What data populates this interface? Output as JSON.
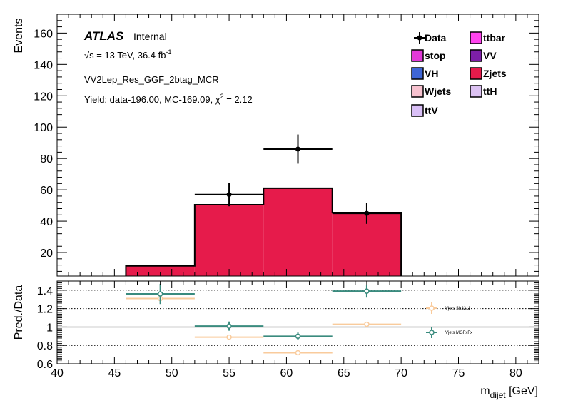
{
  "chart_data": [
    {
      "type": "bar",
      "panel": "main",
      "xlabel_main": "m",
      "xlabel_sub": "dijet",
      "xlabel_unit": " [GeV]",
      "ylabel": "Events",
      "xlim": [
        40,
        82
      ],
      "ylim": [
        5,
        172
      ],
      "xticks": [
        40,
        45,
        50,
        55,
        60,
        65,
        70,
        75,
        80
      ],
      "yticks": [
        20,
        40,
        60,
        80,
        100,
        120,
        140,
        160
      ],
      "atlas": {
        "brand": "ATLAS",
        "status": "Internal"
      },
      "energy": {
        "sqrt": "√s",
        "text": " = 13 TeV, 36.4 fb",
        "sup": "-1"
      },
      "region": "VV2Lep_Res_GGF_2btag_MCR",
      "yield": {
        "text": "Yield: data-196.00, MC-169.09, χ",
        "sup": "2",
        "tail": " = 2.12"
      },
      "legend": [
        {
          "name": "Data",
          "color": "#000000",
          "marker": "point"
        },
        {
          "name": "ttbar",
          "color": "#ff44ee",
          "marker": "box"
        },
        {
          "name": "stop",
          "color": "#e23ad8",
          "marker": "box"
        },
        {
          "name": "VV",
          "color": "#7d1fa8",
          "marker": "box"
        },
        {
          "name": "VH",
          "color": "#3f66d6",
          "marker": "box"
        },
        {
          "name": "Zjets",
          "color": "#e61b4b",
          "marker": "box"
        },
        {
          "name": "Wjets",
          "color": "#f7c2cf",
          "marker": "box"
        },
        {
          "name": "ttH",
          "color": "#dcc2f2",
          "marker": "box"
        },
        {
          "name": "ttV",
          "color": "#d9bff6",
          "marker": "box"
        }
      ],
      "stack": {
        "name": "Zjets",
        "color": "#e61b4b",
        "bins": [
          {
            "lo": 46,
            "hi": 52,
            "value": 11.5
          },
          {
            "lo": 52,
            "hi": 58,
            "value": 50.5
          },
          {
            "lo": 58,
            "hi": 64,
            "value": 61
          },
          {
            "lo": 64,
            "hi": 70,
            "value": 45.5
          }
        ]
      },
      "data_points": [
        {
          "x": 55,
          "xlo": 52,
          "xhi": 58,
          "y": 57,
          "err": 7.5
        },
        {
          "x": 61,
          "xlo": 58,
          "xhi": 64,
          "y": 86,
          "err": 9.3
        },
        {
          "x": 67,
          "xlo": 64,
          "xhi": 70,
          "y": 45,
          "err": 6.7
        }
      ]
    },
    {
      "type": "scatter",
      "panel": "ratio",
      "ylabel": "Pred./Data",
      "xlim": [
        40,
        82
      ],
      "ylim": [
        0.6,
        1.5
      ],
      "xticks": [
        40,
        45,
        50,
        55,
        60,
        65,
        70,
        75,
        80
      ],
      "yticks": [
        0.6,
        0.8,
        1,
        1.2,
        1.4
      ],
      "ytick_labels": [
        "0.6",
        "0.8",
        "1",
        "1.2",
        "1.4"
      ],
      "dotted_lines": [
        0.8,
        1.2,
        1.4
      ],
      "reference_line": 1,
      "series": [
        {
          "name": "Vjets Sh2211",
          "color": "#f9cb9c",
          "points": [
            {
              "x": 49,
              "xlo": 46,
              "xhi": 52,
              "y": 1.31,
              "err": 0.0
            },
            {
              "x": 55,
              "xlo": 52,
              "xhi": 58,
              "y": 0.89,
              "err": 0.0
            },
            {
              "x": 61,
              "xlo": 58,
              "xhi": 64,
              "y": 0.72,
              "err": 0.0
            },
            {
              "x": 67,
              "xlo": 64,
              "xhi": 70,
              "y": 1.03,
              "err": 0.0
            }
          ]
        },
        {
          "name": "Vjets MGFxFx",
          "color": "#3a8b7e",
          "points": [
            {
              "x": 49,
              "xlo": 46,
              "xhi": 52,
              "y": 1.36,
              "err": 0.11
            },
            {
              "x": 55,
              "xlo": 52,
              "xhi": 58,
              "y": 1.01,
              "err": 0.05
            },
            {
              "x": 61,
              "xlo": 58,
              "xhi": 64,
              "y": 0.9,
              "err": 0.04
            },
            {
              "x": 67,
              "xlo": 64,
              "xhi": 70,
              "y": 1.39,
              "err": 0.07
            }
          ]
        }
      ]
    }
  ]
}
